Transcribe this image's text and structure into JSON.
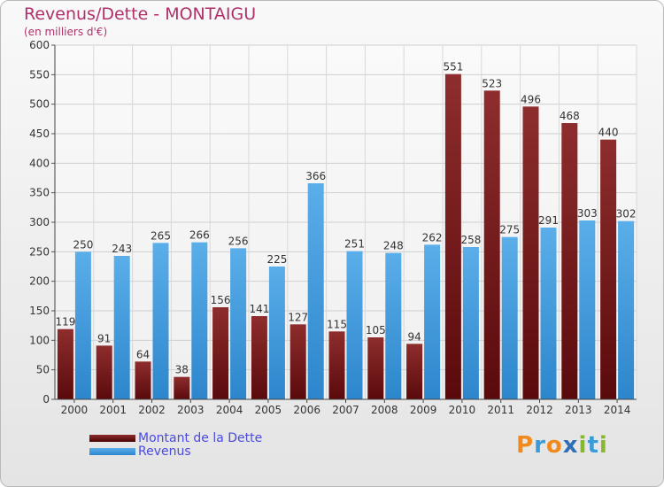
{
  "title": "Revenus/Dette - MONTAIGU",
  "subtitle": "(en milliers d'€)",
  "brand": {
    "name": "Proxiti"
  },
  "colors": {
    "dette": "#7a1f22",
    "revenus": "#49a3e6",
    "title": "#b0306a",
    "legend_text": "#4a4adf"
  },
  "chart_data": {
    "type": "bar",
    "categories": [
      "2000",
      "2001",
      "2002",
      "2003",
      "2004",
      "2005",
      "2006",
      "2007",
      "2008",
      "2009",
      "2010",
      "2011",
      "2012",
      "2013",
      "2014"
    ],
    "series": [
      {
        "name": "Montant de la Dette",
        "values": [
          119,
          91,
          64,
          38,
          156,
          141,
          127,
          115,
          105,
          94,
          551,
          523,
          496,
          468,
          440
        ]
      },
      {
        "name": "Revenus",
        "values": [
          250,
          243,
          265,
          266,
          256,
          225,
          366,
          251,
          248,
          262,
          258,
          275,
          291,
          303,
          302
        ]
      }
    ],
    "ylim": [
      0,
      600
    ],
    "yticks": [
      0,
      50,
      100,
      150,
      200,
      250,
      300,
      350,
      400,
      450,
      500,
      550,
      600
    ],
    "grid": true,
    "legend_position": "bottom-left"
  }
}
